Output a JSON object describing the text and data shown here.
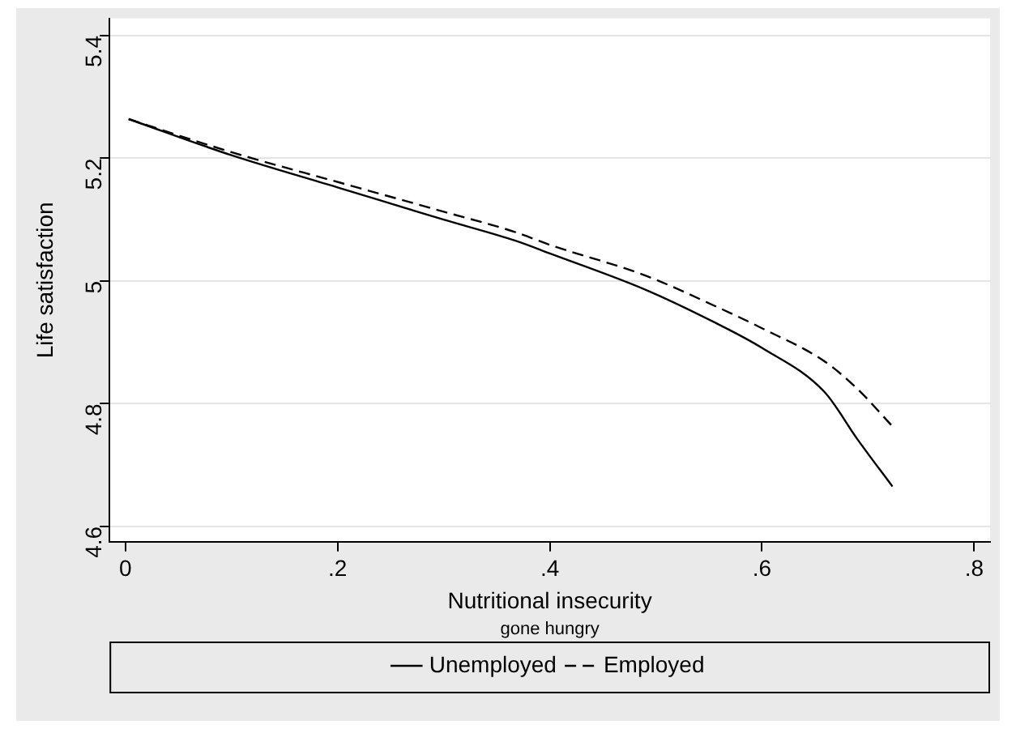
{
  "chart_data": {
    "type": "line",
    "xlabel": "Nutritional insecurity",
    "ylabel": "Life satisfaction",
    "annotations": [
      "gone hungry"
    ],
    "xlim": [
      -0.015,
      0.815
    ],
    "xticks": [
      0,
      {
        "value": 0.2,
        "label": ".2"
      },
      {
        "value": 0.4,
        "label": ".4"
      },
      {
        "value": 0.6,
        "label": ".6"
      },
      {
        "value": 0.8,
        "label": ".8"
      }
    ],
    "ylim": [
      4.575,
      5.428
    ],
    "yticks": [
      4.6,
      4.8,
      5,
      5.2,
      5.4
    ],
    "grid": "y",
    "legend": "bottom",
    "marker": "none",
    "series": [
      {
        "name": "Unemployed",
        "color": "#000000",
        "line_style": "solid",
        "x": [
          0.003,
          0.1,
          0.203,
          0.3,
          0.367,
          0.4,
          0.49,
          0.556,
          0.6,
          0.659,
          0.69,
          0.723
        ],
        "values": [
          5.264,
          5.205,
          5.151,
          5.1,
          5.066,
          5.045,
          4.986,
          4.932,
          4.891,
          4.819,
          4.742,
          4.665
        ]
      },
      {
        "name": "Employed",
        "color": "#000000",
        "line_style": "dashed",
        "x": [
          0.003,
          0.1,
          0.203,
          0.3,
          0.367,
          0.4,
          0.49,
          0.556,
          0.6,
          0.659,
          0.69,
          0.722
        ],
        "values": [
          5.264,
          5.21,
          5.16,
          5.113,
          5.08,
          5.059,
          5.009,
          4.959,
          4.923,
          4.869,
          4.824,
          4.765
        ]
      }
    ]
  }
}
